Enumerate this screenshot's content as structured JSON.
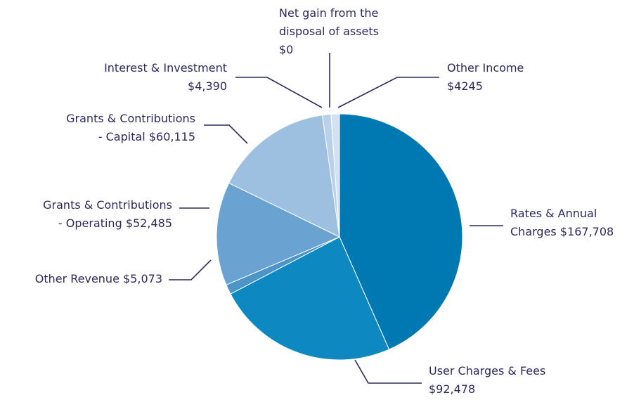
{
  "chart_data": {
    "type": "pie",
    "categories": [
      "Rates & Annual Charges",
      "User Charges & Fees",
      "Other Revenue",
      "Grants & Contributions - Operating",
      "Grants & Contributions - Capital",
      "Interest & Investment",
      "Net gain from the disposal of assets",
      "Other Income"
    ],
    "values": [
      167708,
      92478,
      5073,
      52485,
      60115,
      4390,
      0,
      4245
    ],
    "value_labels": [
      "$167,708",
      "$92,478",
      "$5,073",
      "$52,485",
      "$60,115",
      "$4,390",
      "$0",
      "$4245"
    ],
    "colors": [
      "#0079b3",
      "#0e88c0",
      "#4d95c8",
      "#6aa3d1",
      "#9dbfe0",
      "#b9d1ea",
      "#ffffff",
      "#d3e2f2"
    ]
  }
}
